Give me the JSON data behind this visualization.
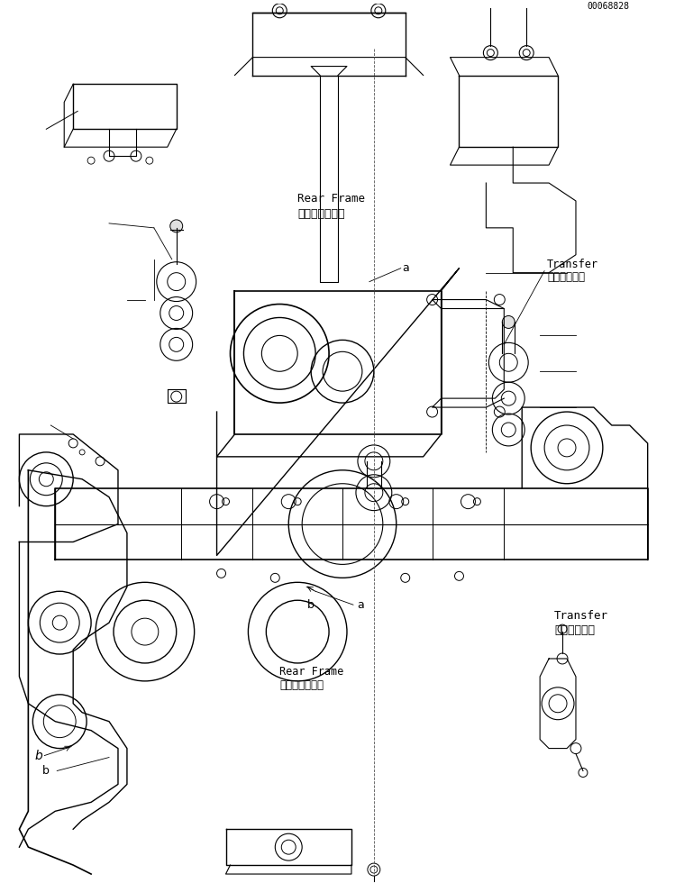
{
  "title": "",
  "background_color": "#ffffff",
  "line_color": "#000000",
  "fig_width": 7.59,
  "fig_height": 9.8,
  "dpi": 100,
  "label_transfer_jp": "トランスファ",
  "label_transfer_en": "Transfer",
  "label_rear_frame_jp": "リヤーフレーム",
  "label_rear_frame_en": "Rear Frame",
  "label_b_top": "b",
  "label_b_bottom": "b",
  "label_a_top": "a",
  "label_a_bottom": "a",
  "serial_number": "00068828",
  "font_size_label": 9,
  "font_size_small": 7,
  "font_size_serial": 8
}
